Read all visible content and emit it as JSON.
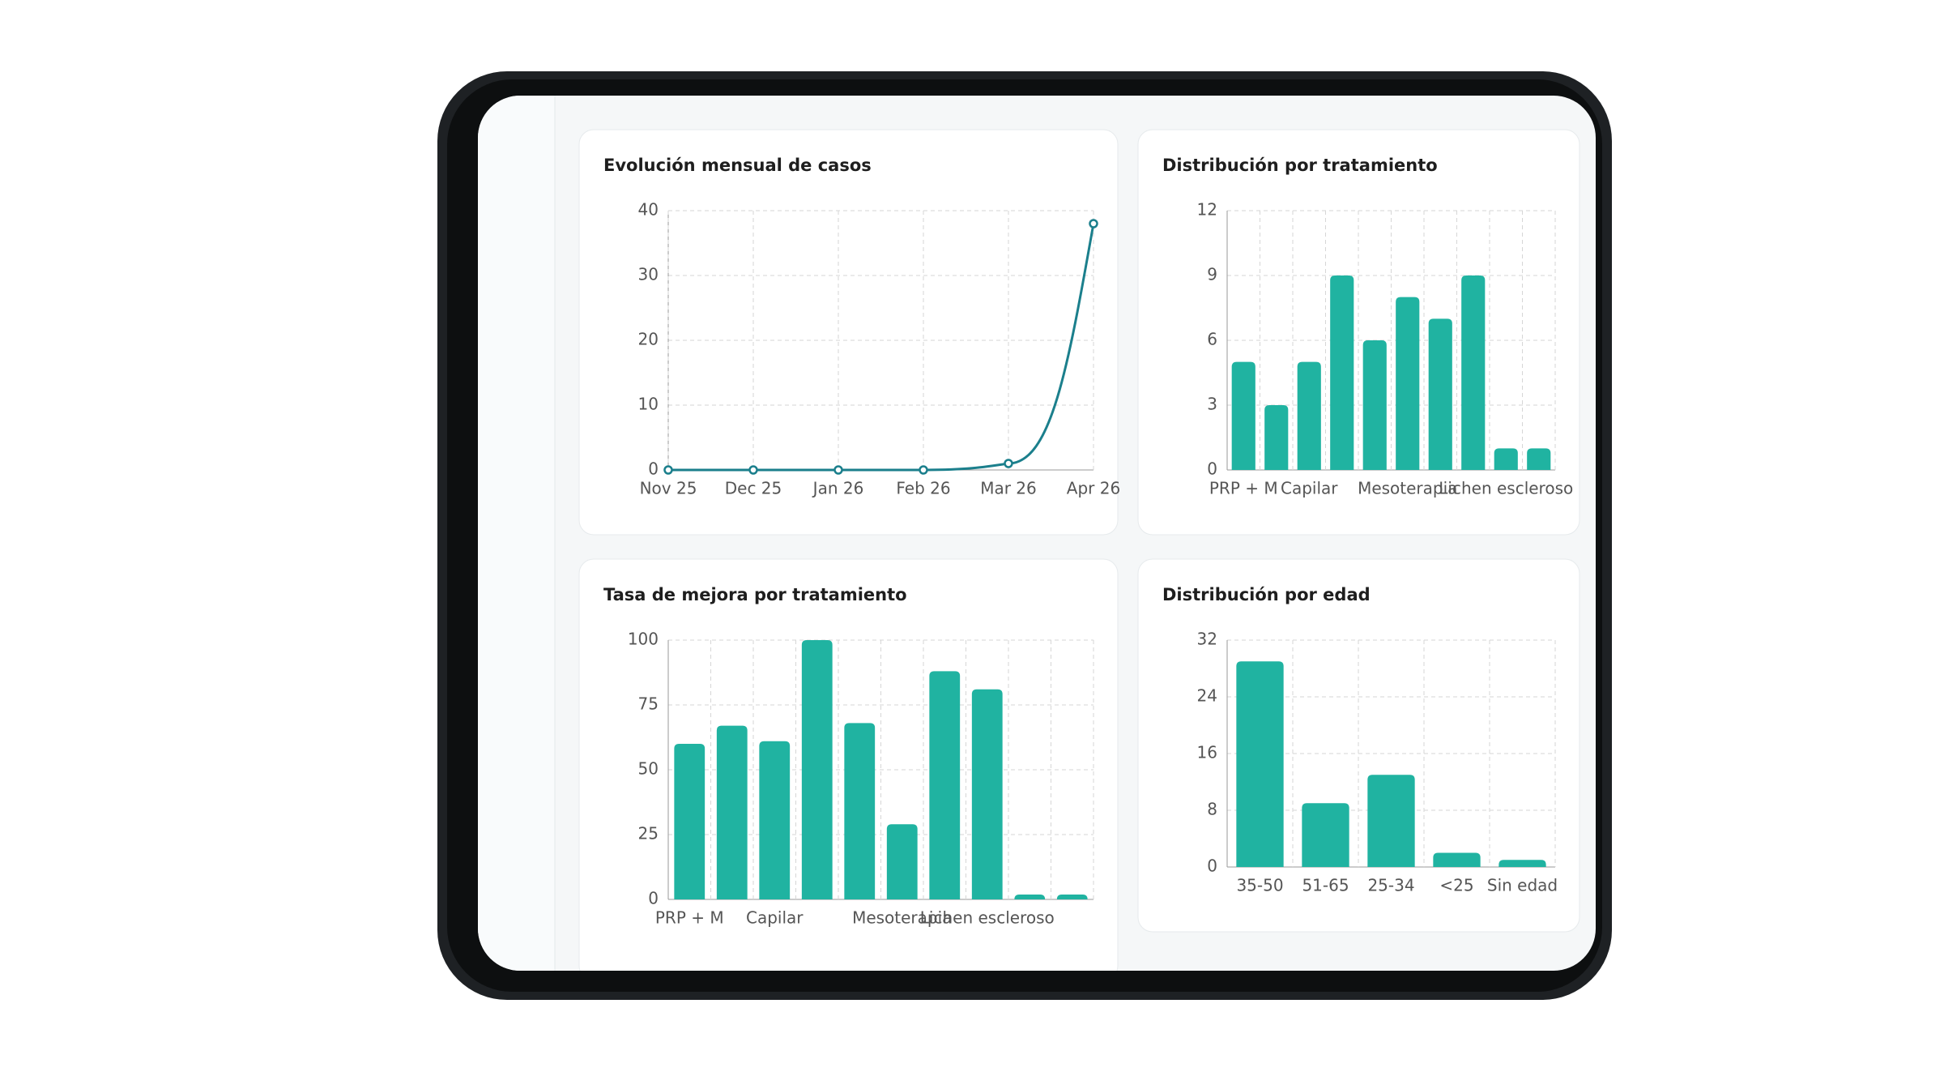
{
  "chart_data": [
    {
      "type": "line",
      "title": "Evolución mensual de casos",
      "categories": [
        "Nov 25",
        "Dec 25",
        "Jan 26",
        "Feb 26",
        "Mar 26",
        "Apr 26"
      ],
      "values": [
        0,
        0,
        0,
        0,
        1,
        38
      ],
      "color": "#1b7f8c",
      "ylim": [
        0,
        40
      ],
      "yticks": [
        0,
        10,
        20,
        30,
        40
      ],
      "grid": true
    },
    {
      "type": "bar",
      "title": "Distribución por tratamiento",
      "categories": [
        "PRP + M",
        null,
        "Capilar",
        null,
        null,
        "Mesoterapia",
        null,
        null,
        "Lichen escleroso",
        null
      ],
      "values": [
        5,
        3,
        5,
        9,
        6,
        8,
        7,
        9,
        1,
        1
      ],
      "color": "#20b3a1",
      "ylim": [
        0,
        12
      ],
      "yticks": [
        0,
        3,
        6,
        9,
        12
      ],
      "grid": true
    },
    {
      "type": "bar",
      "title": "Tasa de mejora por tratamiento",
      "categories": [
        "PRP + M",
        null,
        "Capilar",
        null,
        null,
        "Mesoterapia",
        null,
        "Lichen escleroso",
        null,
        null
      ],
      "values": [
        60,
        67,
        61,
        100,
        68,
        29,
        88,
        81,
        0,
        0
      ],
      "color": "#20b3a1",
      "ylim": [
        0,
        100
      ],
      "yticks": [
        0,
        25,
        50,
        75,
        100
      ],
      "grid": true
    },
    {
      "type": "bar",
      "title": "Distribución por edad",
      "categories": [
        "35-50",
        "51-65",
        "25-34",
        "<25",
        "Sin edad"
      ],
      "values": [
        29,
        9,
        13,
        2,
        1
      ],
      "color": "#20b3a1",
      "ylim": [
        0,
        32
      ],
      "yticks": [
        0,
        8,
        16,
        24,
        32
      ],
      "grid": true
    }
  ]
}
